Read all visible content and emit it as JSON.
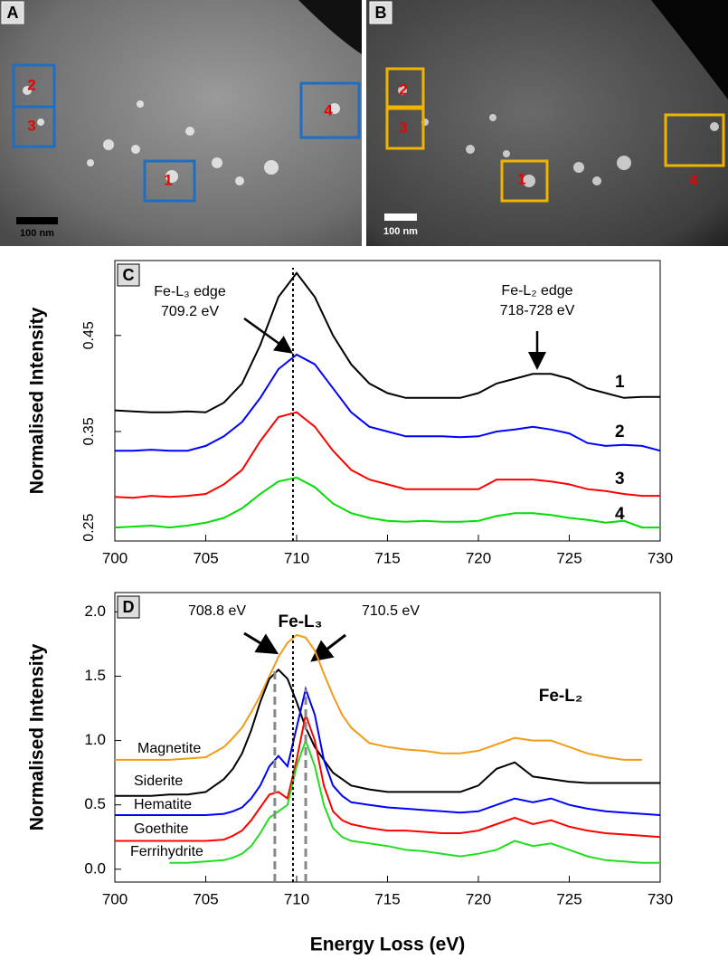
{
  "micrographs": [
    {
      "label": "A",
      "boxes": [
        "2",
        "3",
        "1",
        "4"
      ],
      "scale": "100 nm"
    },
    {
      "label": "B",
      "boxes": [
        "2",
        "3",
        "1",
        "4"
      ],
      "scale": "100 nm"
    }
  ],
  "chart_data": [
    {
      "type": "line",
      "label": "C",
      "ylabel": "Normalised Intensity",
      "xlim": [
        700,
        730
      ],
      "xticks": [
        700,
        705,
        710,
        715,
        720,
        725,
        730
      ],
      "ylim": [
        0.236,
        0.528
      ],
      "yticks": [
        0.25,
        0.35,
        0.45
      ],
      "dotted_x": 709.8,
      "annotations": [
        "Fe-L₃ edge",
        "709.2  eV",
        "Fe-L₂ edge",
        "718-728  eV"
      ],
      "x": [
        700,
        701,
        702,
        703,
        704,
        705,
        706,
        707,
        708,
        709,
        710,
        711,
        712,
        713,
        714,
        715,
        716,
        717,
        718,
        719,
        720,
        721,
        722,
        723,
        724,
        725,
        726,
        727,
        728,
        729,
        730
      ],
      "series": [
        {
          "name": "1",
          "color": "#000000",
          "values": [
            0.372,
            0.371,
            0.37,
            0.37,
            0.371,
            0.37,
            0.38,
            0.4,
            0.44,
            0.49,
            0.515,
            0.49,
            0.45,
            0.42,
            0.4,
            0.39,
            0.385,
            0.385,
            0.385,
            0.385,
            0.39,
            0.4,
            0.405,
            0.41,
            0.41,
            0.405,
            0.395,
            0.39,
            0.385,
            0.386,
            0.386
          ]
        },
        {
          "name": "2",
          "color": "#0000ff",
          "values": [
            0.33,
            0.33,
            0.331,
            0.33,
            0.33,
            0.335,
            0.345,
            0.36,
            0.385,
            0.415,
            0.43,
            0.42,
            0.395,
            0.37,
            0.355,
            0.35,
            0.345,
            0.345,
            0.345,
            0.344,
            0.345,
            0.35,
            0.352,
            0.355,
            0.352,
            0.348,
            0.338,
            0.335,
            0.336,
            0.335,
            0.33
          ]
        },
        {
          "name": "3",
          "color": "#ff0000",
          "values": [
            0.282,
            0.281,
            0.283,
            0.282,
            0.283,
            0.285,
            0.295,
            0.31,
            0.34,
            0.365,
            0.37,
            0.355,
            0.33,
            0.31,
            0.3,
            0.295,
            0.29,
            0.29,
            0.29,
            0.29,
            0.29,
            0.3,
            0.3,
            0.3,
            0.298,
            0.295,
            0.29,
            0.288,
            0.285,
            0.283,
            0.283
          ]
        },
        {
          "name": "4",
          "color": "#00dd00",
          "values": [
            0.25,
            0.251,
            0.252,
            0.25,
            0.252,
            0.255,
            0.26,
            0.27,
            0.285,
            0.298,
            0.302,
            0.292,
            0.275,
            0.265,
            0.26,
            0.257,
            0.256,
            0.257,
            0.256,
            0.256,
            0.257,
            0.262,
            0.265,
            0.265,
            0.263,
            0.26,
            0.258,
            0.255,
            0.257,
            0.25,
            0.25
          ]
        }
      ]
    },
    {
      "type": "line",
      "label": "D",
      "ylabel": "Normalised Intensity",
      "xlabel": "Energy Loss (eV)",
      "xlim": [
        700,
        730
      ],
      "xticks": [
        700,
        705,
        710,
        715,
        720,
        725,
        730
      ],
      "ylim": [
        -0.1,
        2.15
      ],
      "yticks": [
        {
          "value": 0,
          "label": "0.0"
        },
        {
          "value": 0.5,
          "label": "0.5"
        },
        {
          "value": 1,
          "label": "1.0"
        },
        {
          "value": 1.5,
          "label": "1.5"
        },
        {
          "value": 2,
          "label": "2.0"
        }
      ],
      "dotted_x": 709.8,
      "dashed_x": [
        708.8,
        710.5
      ],
      "annotations": [
        "708.8  eV",
        "Fe-L₃",
        "710.5  eV",
        "Fe-L₂"
      ],
      "x": [
        700,
        701,
        702,
        703,
        704,
        705,
        706,
        706.5,
        707,
        707.5,
        708,
        708.5,
        709,
        709.5,
        710,
        710.5,
        711,
        711.5,
        712,
        712.5,
        713,
        714,
        715,
        716,
        717,
        718,
        719,
        720,
        721,
        722,
        723,
        724,
        725,
        726,
        727,
        728,
        729,
        730
      ],
      "series": [
        {
          "name": "Magnetite",
          "color": "#f29b1a",
          "values": [
            0.85,
            0.85,
            0.85,
            0.85,
            0.86,
            0.87,
            0.95,
            1.02,
            1.1,
            1.22,
            1.35,
            1.5,
            1.65,
            1.76,
            1.82,
            1.8,
            1.7,
            1.52,
            1.35,
            1.2,
            1.1,
            0.98,
            0.95,
            0.93,
            0.92,
            0.9,
            0.9,
            0.92,
            0.97,
            1.02,
            1.0,
            1.0,
            0.95,
            0.9,
            0.87,
            0.85,
            0.85,
            null
          ]
        },
        {
          "name": "Siderite",
          "color": "#000000",
          "values": [
            0.57,
            0.57,
            0.57,
            0.58,
            0.58,
            0.6,
            0.7,
            0.78,
            0.9,
            1.08,
            1.3,
            1.48,
            1.55,
            1.48,
            1.3,
            1.1,
            0.95,
            0.85,
            0.75,
            0.7,
            0.65,
            0.62,
            0.6,
            0.6,
            0.6,
            0.6,
            0.6,
            0.65,
            0.78,
            0.83,
            0.72,
            0.7,
            0.68,
            0.67,
            0.67,
            0.67,
            0.67,
            0.67
          ]
        },
        {
          "name": "Hematite",
          "color": "#0000ff",
          "values": [
            0.42,
            0.42,
            0.42,
            0.42,
            0.42,
            0.42,
            0.43,
            0.45,
            0.48,
            0.55,
            0.65,
            0.8,
            0.88,
            0.8,
            1.1,
            1.4,
            1.2,
            0.85,
            0.65,
            0.57,
            0.52,
            0.5,
            0.48,
            0.47,
            0.46,
            0.45,
            0.44,
            0.45,
            0.5,
            0.55,
            0.52,
            0.55,
            0.5,
            0.47,
            0.45,
            0.44,
            0.43,
            0.42
          ]
        },
        {
          "name": "Goethite",
          "color": "#ff0000",
          "values": [
            0.22,
            0.22,
            0.22,
            0.22,
            0.22,
            0.22,
            0.23,
            0.26,
            0.3,
            0.38,
            0.48,
            0.58,
            0.6,
            0.55,
            0.85,
            1.2,
            1.0,
            0.65,
            0.45,
            0.38,
            0.35,
            0.32,
            0.3,
            0.3,
            0.29,
            0.28,
            0.28,
            0.3,
            0.35,
            0.4,
            0.35,
            0.38,
            0.33,
            0.3,
            0.28,
            0.27,
            0.26,
            0.25
          ]
        },
        {
          "name": "Ferrihydrite",
          "color": "#22dd22",
          "values": [
            null,
            null,
            null,
            0.05,
            0.05,
            0.06,
            0.07,
            0.09,
            0.12,
            0.18,
            0.28,
            0.4,
            0.45,
            0.5,
            0.8,
            1.0,
            0.8,
            0.5,
            0.32,
            0.25,
            0.22,
            0.2,
            0.18,
            0.15,
            0.14,
            0.12,
            0.1,
            0.12,
            0.15,
            0.22,
            0.18,
            0.2,
            0.15,
            0.1,
            0.07,
            0.06,
            0.05,
            0.05
          ]
        }
      ]
    }
  ]
}
